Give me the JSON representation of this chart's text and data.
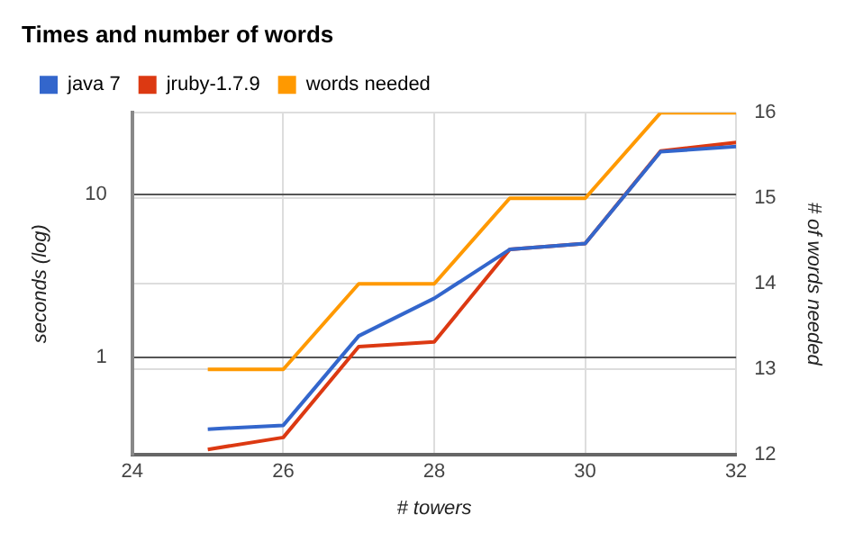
{
  "chart_data": {
    "type": "line",
    "title": "Times and number of words",
    "xlabel": "# towers",
    "ylabel": "seconds (log)",
    "y2label": "# of words needed",
    "x": [
      25,
      26,
      27,
      28,
      29,
      30,
      31,
      32
    ],
    "series": [
      {
        "name": "java 7",
        "color": "#3366cc",
        "values": [
          0.36,
          0.38,
          1.35,
          2.3,
          4.6,
          5.0,
          18.4,
          19.8
        ]
      },
      {
        "name": "jruby-1.7.9",
        "color": "#dc3912",
        "values": [
          0.27,
          0.32,
          1.16,
          1.24,
          4.6,
          5.0,
          18.6,
          21
        ]
      },
      {
        "name": "words needed",
        "color": "#ff9900",
        "axis": "y2",
        "values": [
          13,
          13,
          14,
          14,
          15,
          15,
          16,
          16
        ]
      }
    ],
    "xlim": [
      24,
      32
    ],
    "xticks": [
      24,
      26,
      28,
      30,
      32
    ],
    "ylim": [
      0.25,
      32
    ],
    "yticks": [
      1,
      10
    ],
    "log": "y",
    "y2lim": [
      12,
      16
    ],
    "y2ticks": [
      12,
      13,
      14,
      15,
      16
    ],
    "grid": true,
    "legend": "top left",
    "marker": "none",
    "line_style": "solid"
  }
}
